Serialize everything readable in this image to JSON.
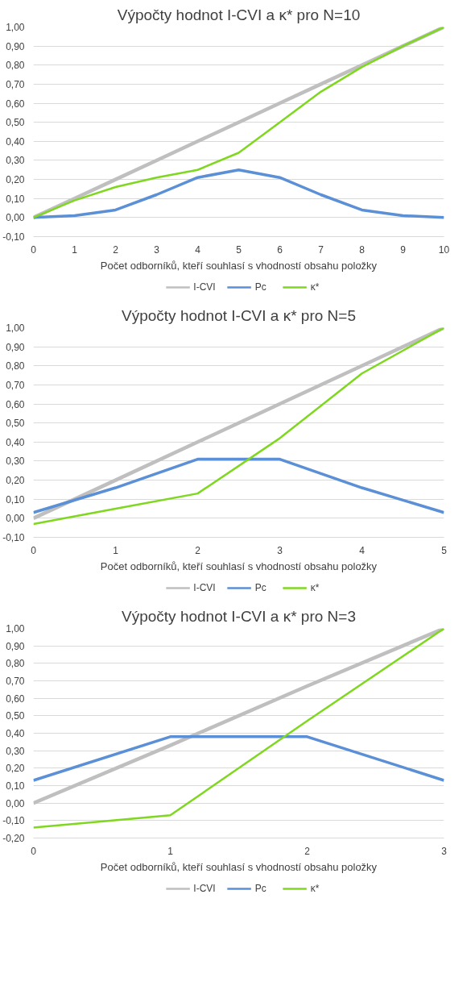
{
  "chart_data": [
    {
      "type": "line",
      "title": "Výpočty hodnot I-CVI a κ* pro N=10",
      "xlabel": "Počet odborníků, kteří souhlasí s vhodností obsahu položky",
      "x": [
        0,
        1,
        2,
        3,
        4,
        5,
        6,
        7,
        8,
        9,
        10
      ],
      "series": [
        {
          "name": "I-CVI",
          "color": "#bfbfbf",
          "values": [
            0,
            0.1,
            0.2,
            0.3,
            0.4,
            0.5,
            0.6,
            0.7,
            0.8,
            0.9,
            1.0
          ]
        },
        {
          "name": "Pc",
          "color": "#5b8fd6",
          "values": [
            0.0,
            0.01,
            0.04,
            0.12,
            0.21,
            0.25,
            0.21,
            0.12,
            0.04,
            0.01,
            0.0
          ]
        },
        {
          "name": "κ*",
          "color": "#7fd71f",
          "values": [
            0.0,
            0.09,
            0.16,
            0.21,
            0.25,
            0.34,
            0.5,
            0.66,
            0.79,
            0.9,
            1.0
          ]
        }
      ],
      "xlim": [
        0,
        10
      ],
      "ylim": [
        -0.1,
        1.0
      ],
      "xticks": [
        0,
        1,
        2,
        3,
        4,
        5,
        6,
        7,
        8,
        9,
        10
      ],
      "yticks": [
        {
          "value": -0.1,
          "label": "-0,10"
        },
        {
          "value": 0,
          "label": "0,00"
        },
        {
          "value": 0.1,
          "label": "0,10"
        },
        {
          "value": 0.2,
          "label": "0,20"
        },
        {
          "value": 0.3,
          "label": "0,30"
        },
        {
          "value": 0.4,
          "label": "0,40"
        },
        {
          "value": 0.5,
          "label": "0,50"
        },
        {
          "value": 0.6,
          "label": "0,60"
        },
        {
          "value": 0.7,
          "label": "0,70"
        },
        {
          "value": 0.8,
          "label": "0,80"
        },
        {
          "value": 0.9,
          "label": "0,90"
        },
        {
          "value": 1.0,
          "label": "1,00"
        }
      ],
      "grid": "y",
      "legend": "bottom"
    },
    {
      "type": "line",
      "title": "Výpočty hodnot I-CVI a κ* pro N=5",
      "xlabel": "Počet odborníků, kteří souhlasí s vhodností obsahu položky",
      "x": [
        0,
        1,
        2,
        3,
        4,
        5
      ],
      "series": [
        {
          "name": "I-CVI",
          "color": "#bfbfbf",
          "values": [
            0,
            0.2,
            0.4,
            0.6,
            0.8,
            1.0
          ]
        },
        {
          "name": "Pc",
          "color": "#5b8fd6",
          "values": [
            0.03,
            0.16,
            0.31,
            0.31,
            0.16,
            0.03
          ]
        },
        {
          "name": "κ*",
          "color": "#7fd71f",
          "values": [
            -0.03,
            0.05,
            0.13,
            0.42,
            0.76,
            1.0
          ]
        }
      ],
      "xlim": [
        0,
        5
      ],
      "ylim": [
        -0.1,
        1.0
      ],
      "xticks": [
        0,
        1,
        2,
        3,
        4,
        5
      ],
      "yticks": [
        {
          "value": -0.1,
          "label": "-0,10"
        },
        {
          "value": 0,
          "label": "0,00"
        },
        {
          "value": 0.1,
          "label": "0,10"
        },
        {
          "value": 0.2,
          "label": "0,20"
        },
        {
          "value": 0.3,
          "label": "0,30"
        },
        {
          "value": 0.4,
          "label": "0,40"
        },
        {
          "value": 0.5,
          "label": "0,50"
        },
        {
          "value": 0.6,
          "label": "0,60"
        },
        {
          "value": 0.7,
          "label": "0,70"
        },
        {
          "value": 0.8,
          "label": "0,80"
        },
        {
          "value": 0.9,
          "label": "0,90"
        },
        {
          "value": 1.0,
          "label": "1,00"
        }
      ],
      "grid": "y",
      "legend": "bottom"
    },
    {
      "type": "line",
      "title": "Výpočty hodnot I-CVI a κ* pro N=3",
      "xlabel": "Počet odborníků, kteří souhlasí s vhodností obsahu položky",
      "x": [
        0,
        1,
        2,
        3
      ],
      "series": [
        {
          "name": "I-CVI",
          "color": "#bfbfbf",
          "values": [
            0,
            0.33,
            0.67,
            1.0
          ]
        },
        {
          "name": "Pc",
          "color": "#5b8fd6",
          "values": [
            0.13,
            0.38,
            0.38,
            0.13
          ]
        },
        {
          "name": "κ*",
          "color": "#7fd71f",
          "values": [
            -0.14,
            -0.07,
            0.47,
            1.0
          ]
        }
      ],
      "xlim": [
        0,
        3
      ],
      "ylim": [
        -0.2,
        1.0
      ],
      "xticks": [
        0,
        1,
        2,
        3
      ],
      "yticks": [
        {
          "value": -0.2,
          "label": "-0,20"
        },
        {
          "value": -0.1,
          "label": "-0,10"
        },
        {
          "value": 0,
          "label": "0,00"
        },
        {
          "value": 0.1,
          "label": "0,10"
        },
        {
          "value": 0.2,
          "label": "0,20"
        },
        {
          "value": 0.3,
          "label": "0,30"
        },
        {
          "value": 0.4,
          "label": "0,40"
        },
        {
          "value": 0.5,
          "label": "0,50"
        },
        {
          "value": 0.6,
          "label": "0,60"
        },
        {
          "value": 0.7,
          "label": "0,70"
        },
        {
          "value": 0.8,
          "label": "0,80"
        },
        {
          "value": 0.9,
          "label": "0,90"
        },
        {
          "value": 1.0,
          "label": "1,00"
        }
      ],
      "grid": "y",
      "legend": "bottom"
    }
  ]
}
